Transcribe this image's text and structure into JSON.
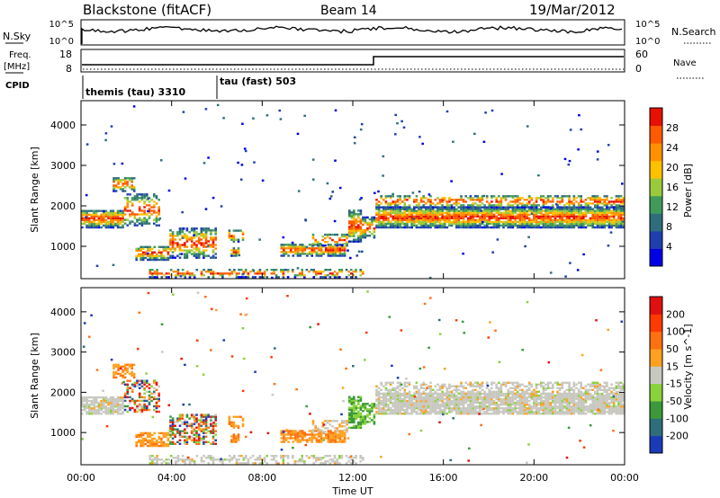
{
  "header": {
    "title": "Blackstone (fitACF)",
    "beam": "Beam 14",
    "date": "19/Mar/2012"
  },
  "top_panels": {
    "nsky_label": "N.Sky",
    "nsearch_label": "N.Search",
    "noise_ticks": [
      "10^5",
      "10^0"
    ],
    "freq_label": "Freq.",
    "freq_unit": "[MHz]",
    "freq_ticks": [
      "18",
      "8"
    ],
    "nave_label": "Nave",
    "nave_ticks": [
      "60",
      "0"
    ],
    "cpid_label": "CPID",
    "cpid_modes": [
      {
        "label": "themis (tau) 3310",
        "start_hour": 0
      },
      {
        "label": "tau (fast) 503",
        "start_hour": 6
      }
    ]
  },
  "chart_data": [
    {
      "type": "heatmap",
      "title": "Power",
      "xlabel": "",
      "ylabel": "Slant Range [km]",
      "xlim": [
        0,
        24
      ],
      "ylim": [
        200,
        4600
      ],
      "x_ticks": [
        0,
        4,
        8,
        12,
        16,
        20,
        24
      ],
      "y_ticks": [
        1000,
        2000,
        3000,
        4000
      ],
      "colorbar": {
        "label": "Power [dB]",
        "ticks": [
          "4",
          "8",
          "12",
          "16",
          "20",
          "24",
          "28"
        ],
        "colors": [
          "#0000e6",
          "#1f3fb0",
          "#2e6e7c",
          "#3f9b5a",
          "#9aca3c",
          "#ffc000",
          "#ff9000",
          "#ff5a00",
          "#e81000"
        ]
      }
    },
    {
      "type": "heatmap",
      "title": "Velocity",
      "xlabel": "Time UT",
      "ylabel": "Slant Range [km]",
      "xlim": [
        0,
        24
      ],
      "ylim": [
        200,
        4600
      ],
      "x_ticks": [
        0,
        4,
        8,
        12,
        16,
        20,
        24
      ],
      "x_tick_labels": [
        "00:00",
        "04:00",
        "08:00",
        "12:00",
        "16:00",
        "20:00",
        "00:00"
      ],
      "y_ticks": [
        1000,
        2000,
        3000,
        4000
      ],
      "colorbar": {
        "label": "Velocity [m s^-1]",
        "ticks": [
          "200",
          "100",
          "50",
          "15",
          "-15",
          "-50",
          "-100",
          "-200"
        ],
        "colors": [
          "#1a3ab8",
          "#2e6e7c",
          "#3a9a3a",
          "#8ad23a",
          "#c8c8c0",
          "#ffa020",
          "#ff7010",
          "#ff3a00",
          "#e01010"
        ]
      }
    }
  ]
}
